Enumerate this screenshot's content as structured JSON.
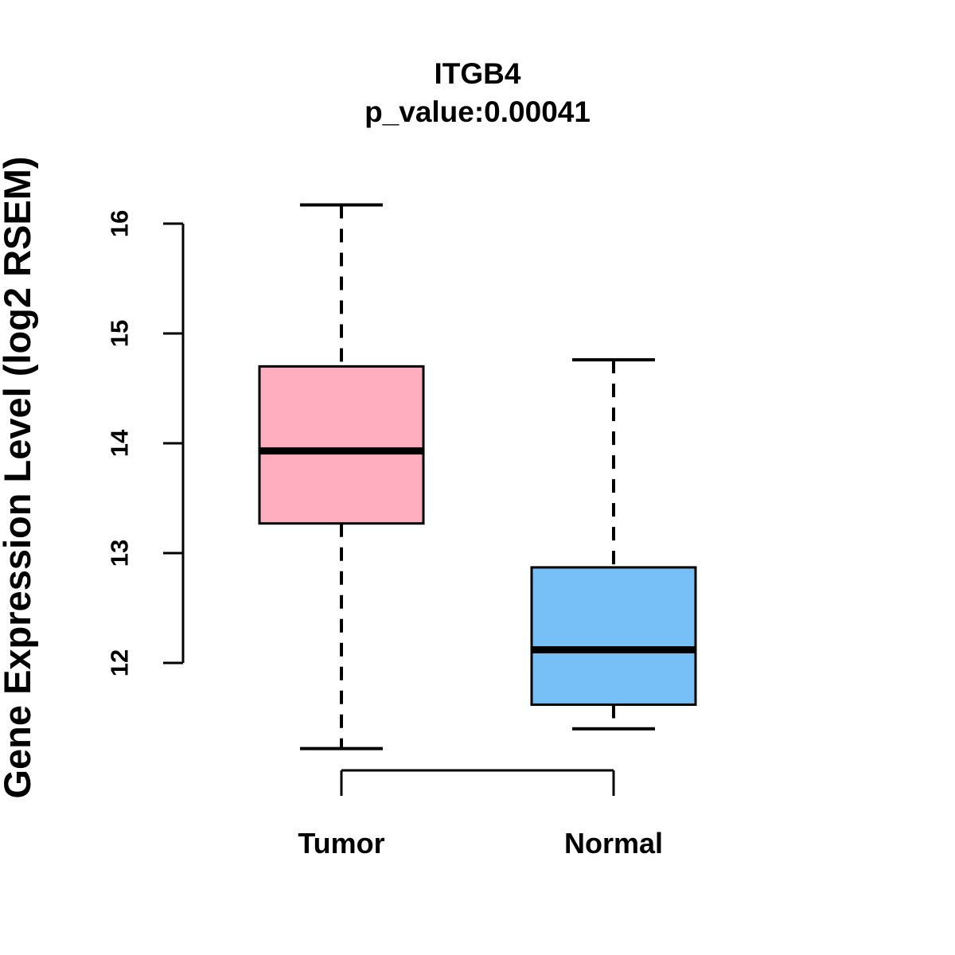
{
  "figure": {
    "background": "#ffffff",
    "title": "ITGB4",
    "subtitle": "p_value:0.00041"
  },
  "chart_data": {
    "type": "boxplot",
    "title": "ITGB4",
    "subtitle": "p_value:0.00041",
    "xlabel": "",
    "ylabel": "Gene Expression Level (log2 RSEM)",
    "categories": [
      "Tumor",
      "Normal"
    ],
    "yticks": [
      12,
      13,
      14,
      15,
      16
    ],
    "ylim": [
      11.1,
      16.3
    ],
    "grid": false,
    "legend": "none",
    "series": [
      {
        "name": "Tumor",
        "box_color": "#FFAEC0",
        "lower_whisker": 11.22,
        "q1": 13.27,
        "median": 13.93,
        "q3": 14.7,
        "upper_whisker": 16.17,
        "outliers": []
      },
      {
        "name": "Normal",
        "box_color": "#77BFF7",
        "lower_whisker": 11.4,
        "q1": 11.62,
        "median": 12.12,
        "q3": 12.87,
        "upper_whisker": 14.76,
        "outliers": []
      }
    ],
    "colors": {
      "stroke": "#000000",
      "tumor_fill": "#FFAEC0",
      "normal_fill": "#77BFF7"
    }
  }
}
